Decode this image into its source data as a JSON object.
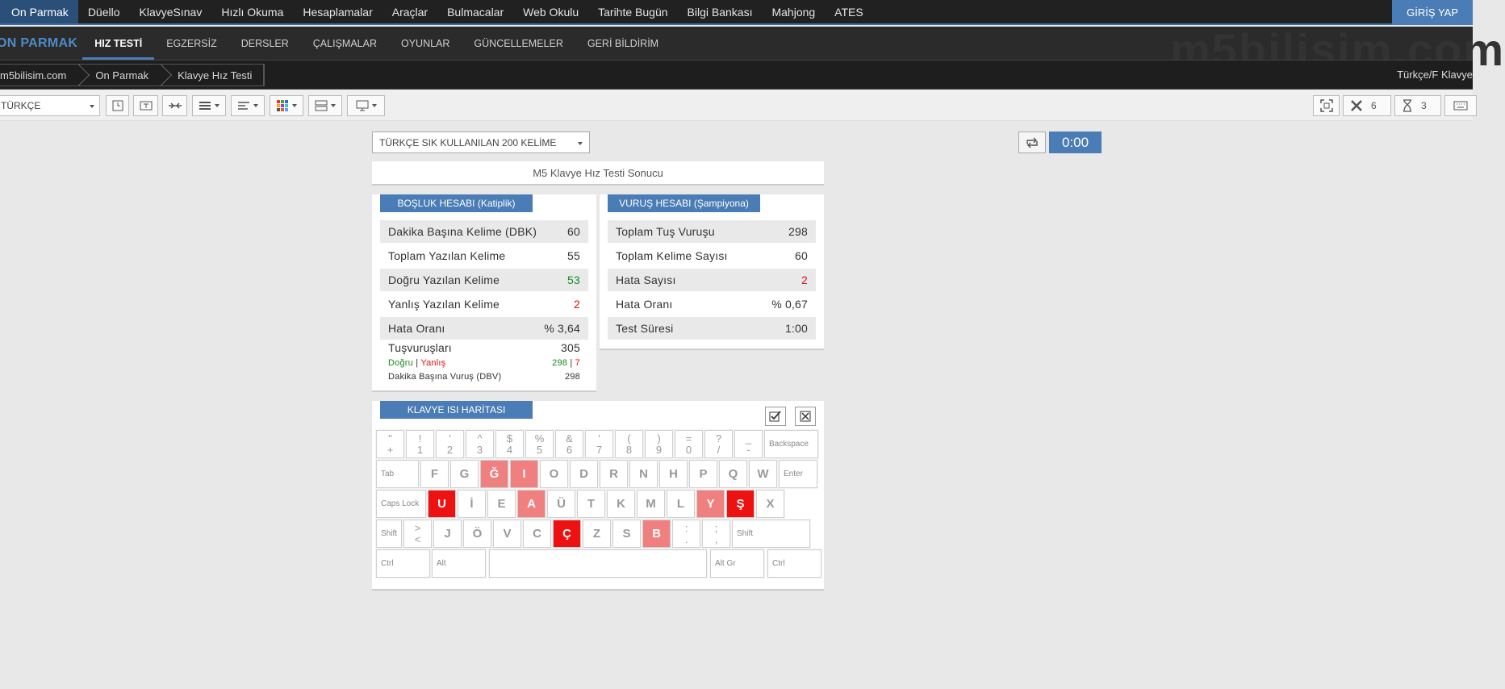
{
  "topnav": {
    "items": [
      "On Parmak",
      "Düello",
      "KlavyeSınav",
      "Hızlı Okuma",
      "Hesaplamalar",
      "Araçlar",
      "Bulmacalar",
      "Web Okulu",
      "Tarihte Bugün",
      "Bilgi Bankası",
      "Mahjong",
      "ATES"
    ],
    "login": "GİRİŞ YAP"
  },
  "subnav": {
    "brand": "ON PARMAK",
    "items": [
      "HIZ TESTİ",
      "EGZERSİZ",
      "DERSLER",
      "ÇALIŞMALAR",
      "OYUNLAR",
      "GÜNCELLEMELER",
      "GERİ BİLDİRİM"
    ],
    "watermark": "m5bilisim.com"
  },
  "breadcrumb": {
    "items": [
      "m5bilisim.com",
      "On Parmak",
      "Klavye Hız Testi"
    ],
    "lang": "Türkçe/F Klavye"
  },
  "toolbar": {
    "language": "TÜRKÇE",
    "error_count": "6",
    "time_count": "3"
  },
  "test": {
    "word_set": "TÜRKÇE SIK KULLANILAN 200 KELİME",
    "timer": "0:00",
    "result_title": "M5 Klavye Hız Testi Sonucu"
  },
  "bosluk": {
    "title": "BOŞLUK HESABI (Katiplik)",
    "rows": [
      {
        "label": "Dakika Başına Kelime (DBK)",
        "value": "60"
      },
      {
        "label": "Toplam Yazılan Kelime",
        "value": "55"
      },
      {
        "label": "Doğru Yazılan Kelime",
        "value": "53"
      },
      {
        "label": "Yanlış Yazılan Kelime",
        "value": "2"
      },
      {
        "label": "Hata Oranı",
        "value": "% 3,64"
      },
      {
        "label": "Tuşvuruşları",
        "value": "305"
      }
    ],
    "dogru_label": "Doğru",
    "yanlis_label": "Yanlış",
    "dogru_value": "298",
    "yanlis_value": "7",
    "divider": "|",
    "dbv_label": "Dakika Başına Vuruş (DBV)",
    "dbv_value": "298"
  },
  "vurus": {
    "title": "VURUŞ HESABI (Şampiyona)",
    "rows": [
      {
        "label": "Toplam Tuş Vuruşu",
        "value": "298"
      },
      {
        "label": "Toplam Kelime Sayısı",
        "value": "60"
      },
      {
        "label": "Hata Sayısı",
        "value": "2"
      },
      {
        "label": "Hata Oranı",
        "value": "% 0,67"
      },
      {
        "label": "Test Süresi",
        "value": "1:00"
      }
    ]
  },
  "keyboard": {
    "title": "KLAVYE ISI HARİTASI",
    "row1": [
      {
        "top": "\"",
        "bottom": "+"
      },
      {
        "top": "!",
        "bottom": "1"
      },
      {
        "top": "'",
        "bottom": "2"
      },
      {
        "top": "^",
        "bottom": "3"
      },
      {
        "top": "$",
        "bottom": "4"
      },
      {
        "top": "%",
        "bottom": "5"
      },
      {
        "top": "&",
        "bottom": "6"
      },
      {
        "top": "'",
        "bottom": "7"
      },
      {
        "top": "(",
        "bottom": "8"
      },
      {
        "top": ")",
        "bottom": "9"
      },
      {
        "top": "=",
        "bottom": "0"
      },
      {
        "top": "?",
        "bottom": "/"
      },
      {
        "top": "_",
        "bottom": "-"
      }
    ],
    "backspace": "Backspace",
    "tab": "Tab",
    "row2": [
      "F",
      "G",
      "Ğ",
      "I",
      "O",
      "D",
      "R",
      "N",
      "H",
      "P",
      "Q",
      "W"
    ],
    "enter": "Enter",
    "capslock": "Caps Lock",
    "row3": [
      "U",
      "İ",
      "E",
      "A",
      "Ü",
      "T",
      "K",
      "M",
      "L",
      "Y",
      "Ş",
      "X"
    ],
    "shift": "Shift",
    "lt": {
      "top": ">",
      "bottom": "<"
    },
    "row4": [
      "J",
      "Ö",
      "V",
      "C",
      "Ç",
      "Z",
      "S",
      "B"
    ],
    "colon": {
      "top": ":",
      "bottom": "."
    },
    "semi": {
      "top": ";",
      "bottom": ","
    },
    "ctrl": "Ctrl",
    "alt": "Alt",
    "altgr": "Alt Gr",
    "hot_light": [
      "Ğ",
      "I",
      "A",
      "Y",
      "B"
    ],
    "hot_strong": [
      "U",
      "Ş",
      "Ç"
    ]
  }
}
